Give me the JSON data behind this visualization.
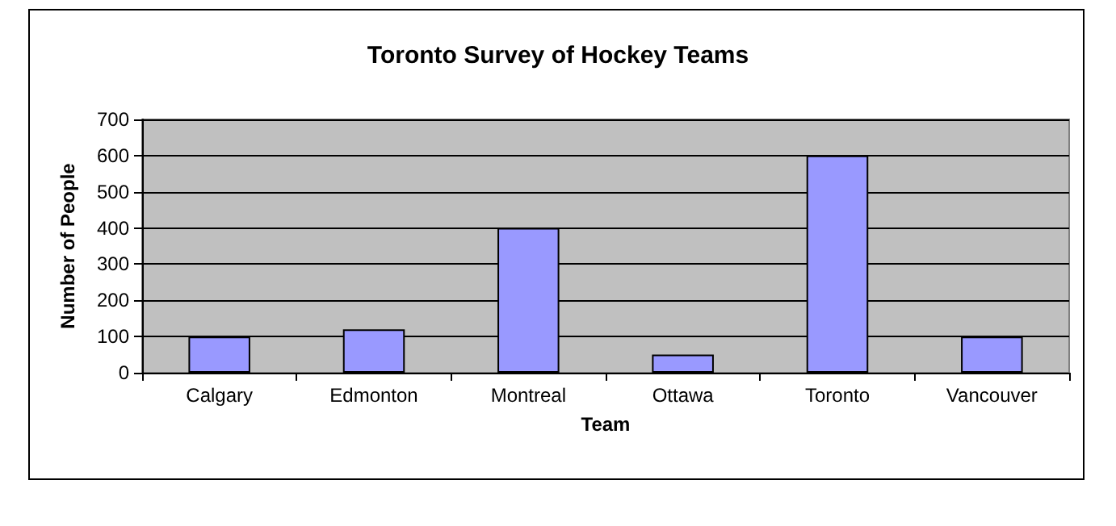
{
  "chart_data": {
    "type": "bar",
    "title": "Toronto Survey of Hockey Teams",
    "xlabel": "Team",
    "ylabel": "Number of People",
    "categories": [
      "Calgary",
      "Edmonton",
      "Montreal",
      "Ottawa",
      "Toronto",
      "Vancouver"
    ],
    "values": [
      100,
      120,
      400,
      50,
      600,
      100
    ],
    "color": "#9999ff",
    "ylim": [
      0,
      700
    ],
    "yticks": [
      0,
      100,
      200,
      300,
      400,
      500,
      600,
      700
    ],
    "grid": "y"
  }
}
